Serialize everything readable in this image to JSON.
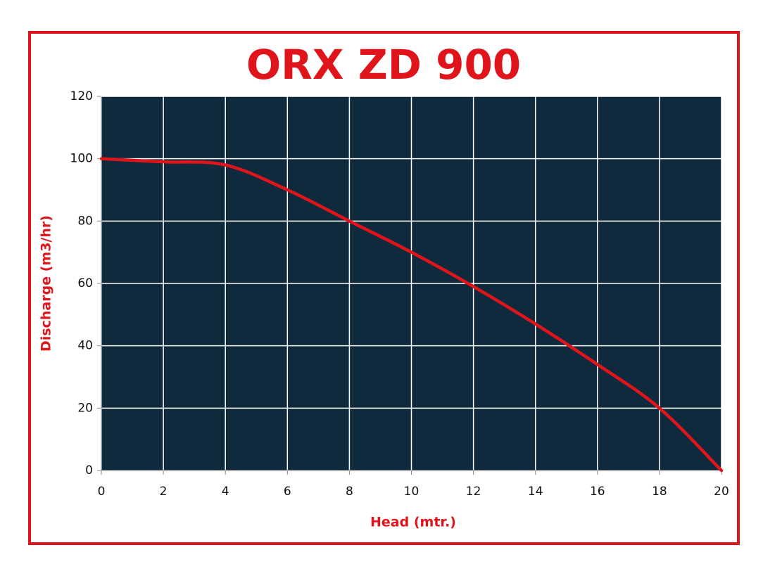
{
  "chart_data": {
    "type": "line",
    "title": "ORX ZD 900",
    "x_label": "Head (mtr.)",
    "y_label": "Discharge (m3/hr)",
    "x": [
      0,
      2,
      4,
      6,
      8,
      10,
      12,
      14,
      16,
      18,
      20
    ],
    "series": [
      {
        "name": "Discharge",
        "color": "#e0151b",
        "values": [
          100,
          99,
          98,
          90,
          80,
          70,
          59,
          47,
          34,
          20,
          0
        ]
      }
    ],
    "xlim": [
      0,
      20
    ],
    "xticks": [
      0,
      2,
      4,
      6,
      8,
      10,
      12,
      14,
      16,
      18,
      20
    ],
    "ylim": [
      0,
      120
    ],
    "yticks": [
      0,
      20,
      40,
      60,
      80,
      100,
      120
    ],
    "grid": true,
    "plot_background": "#0e2a3c"
  }
}
